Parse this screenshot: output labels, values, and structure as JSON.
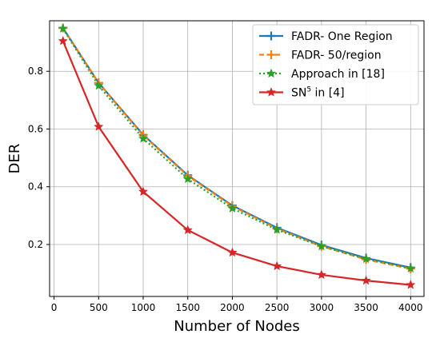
{
  "chart_data": {
    "type": "line",
    "xlabel": "Number of Nodes",
    "ylabel": "DER",
    "xlim": [
      -50,
      4150
    ],
    "ylim": [
      0.02,
      0.975
    ],
    "xticks": [
      0,
      500,
      1000,
      1500,
      2000,
      2500,
      3000,
      3500,
      4000
    ],
    "xtick_labels": [
      "0",
      "500",
      "1000",
      "1500",
      "2000",
      "2500",
      "3000",
      "3500",
      "4000"
    ],
    "yticks": [
      0.2,
      0.4,
      0.6,
      0.8
    ],
    "ytick_labels": [
      "0.2",
      "0.4",
      "0.6",
      "0.8"
    ],
    "grid": true,
    "legend_position": "top-right",
    "x": [
      100,
      500,
      1000,
      1500,
      2000,
      2500,
      3000,
      3500,
      4000
    ],
    "series": [
      {
        "name": "FADR- One Region",
        "color": "#1f77b4",
        "linestyle": "solid",
        "marker": "plus",
        "values": [
          0.95,
          0.76,
          0.58,
          0.44,
          0.335,
          0.258,
          0.198,
          0.153,
          0.12
        ]
      },
      {
        "name": "FADR- 50/region",
        "color": "#ff7f0e",
        "linestyle": "dashed",
        "marker": "plus",
        "values": [
          0.95,
          0.76,
          0.578,
          0.438,
          0.333,
          0.255,
          0.194,
          0.148,
          0.116
        ]
      },
      {
        "name": "Approach in [18]",
        "color": "#2ca02c",
        "linestyle": "dotted",
        "marker": "star",
        "values": [
          0.948,
          0.75,
          0.567,
          0.427,
          0.325,
          0.251,
          0.194,
          0.15,
          0.117
        ]
      },
      {
        "name": "SN",
        "name_superscript": "5",
        "name_suffix": " in [4]",
        "color": "#d62728",
        "linestyle": "solid",
        "marker": "star",
        "values": [
          0.905,
          0.608,
          0.383,
          0.25,
          0.172,
          0.125,
          0.095,
          0.075,
          0.06
        ]
      }
    ]
  }
}
